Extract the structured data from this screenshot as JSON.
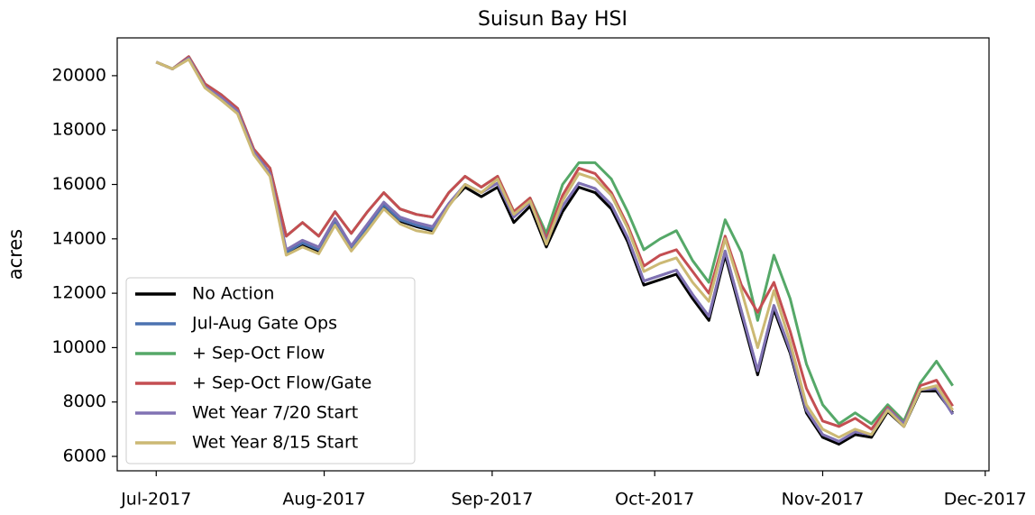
{
  "chart_data": {
    "type": "line",
    "title": "Suisun Bay HSI",
    "y_label": "acres",
    "x": [
      0,
      3,
      6,
      9,
      12,
      15,
      18,
      21,
      24,
      27,
      30,
      33,
      36,
      39,
      42,
      45,
      48,
      51,
      54,
      57,
      60,
      63,
      66,
      69,
      72,
      75,
      78,
      81,
      84,
      87,
      90,
      93,
      96,
      99,
      102,
      105,
      108,
      111,
      114,
      117,
      120,
      123,
      126,
      129,
      132,
      135,
      138,
      141,
      144,
      147
    ],
    "xlim": [
      -7.2,
      153.7
    ],
    "xticks": [
      {
        "value": 0,
        "label": "Jul-2017"
      },
      {
        "value": 31,
        "label": "Aug-2017"
      },
      {
        "value": 62,
        "label": "Sep-2017"
      },
      {
        "value": 92,
        "label": "Oct-2017"
      },
      {
        "value": 123,
        "label": "Nov-2017"
      },
      {
        "value": 153,
        "label": "Dec-2017"
      }
    ],
    "ylim": [
      5470,
      21390
    ],
    "yticks": [
      6000,
      8000,
      10000,
      12000,
      14000,
      16000,
      18000,
      20000
    ],
    "legend": "lower left",
    "series": [
      {
        "name": "No Action",
        "color": "#000000",
        "values": [
          20500,
          20250,
          20650,
          19600,
          19200,
          18700,
          17200,
          16400,
          13450,
          13800,
          13550,
          14600,
          13600,
          14400,
          15200,
          14650,
          14450,
          14300,
          15250,
          15900,
          15550,
          15900,
          14600,
          15200,
          13700,
          15000,
          15900,
          15700,
          15100,
          13900,
          12300,
          12500,
          12700,
          11800,
          11000,
          13400,
          11200,
          9000,
          11400,
          9800,
          7600,
          6700,
          6450,
          6800,
          6700,
          7650,
          7100,
          8400,
          8400,
          7600
        ]
      },
      {
        "name": "Jul-Aug Gate Ops",
        "color": "#4c72b0",
        "values": [
          20500,
          20250,
          20650,
          19600,
          19200,
          18700,
          17200,
          16400,
          13500,
          13850,
          13600,
          14650,
          13650,
          14450,
          15250,
          14700,
          14500,
          14350,
          15250,
          16000,
          15700,
          16050,
          14800,
          15350,
          13900,
          15200,
          16050,
          15850,
          15250,
          14050,
          12450,
          12650,
          12850,
          11950,
          11150,
          13550,
          11350,
          9150,
          11550,
          9900,
          7700,
          6800,
          6550,
          6900,
          6800,
          7750,
          7200,
          8450,
          8500,
          7550
        ]
      },
      {
        "name": "+ Sep-Oct Flow",
        "color": "#55a868",
        "values": [
          20500,
          20250,
          20700,
          19700,
          19300,
          18800,
          17300,
          16600,
          14100,
          14600,
          14100,
          15000,
          14200,
          15000,
          15700,
          15100,
          14900,
          14800,
          15700,
          16300,
          15900,
          16300,
          15000,
          15500,
          14200,
          16000,
          16800,
          16800,
          16200,
          15000,
          13600,
          14000,
          14300,
          13200,
          12400,
          14700,
          13500,
          11000,
          13400,
          11800,
          9400,
          7900,
          7200,
          7600,
          7200,
          7900,
          7300,
          8700,
          9500,
          8600
        ]
      },
      {
        "name": "+ Sep-Oct Flow/Gate",
        "color": "#c44e52",
        "values": [
          20500,
          20250,
          20700,
          19700,
          19300,
          18800,
          17300,
          16600,
          14100,
          14600,
          14100,
          15000,
          14200,
          15000,
          15700,
          15100,
          14900,
          14800,
          15700,
          16300,
          15900,
          16300,
          15000,
          15500,
          14000,
          15600,
          16600,
          16400,
          15700,
          14500,
          13000,
          13400,
          13600,
          12800,
          12000,
          14100,
          12300,
          11300,
          12400,
          10600,
          8500,
          7300,
          7100,
          7400,
          7000,
          7800,
          7200,
          8600,
          8800,
          7850
        ]
      },
      {
        "name": "Wet Year 7/20 Start",
        "color": "#8172b3",
        "values": [
          20500,
          20250,
          20650,
          19600,
          19200,
          18700,
          17200,
          16400,
          13600,
          13950,
          13700,
          14750,
          13750,
          14550,
          15350,
          14800,
          14600,
          14450,
          15300,
          16000,
          15700,
          16050,
          14800,
          15350,
          13900,
          15200,
          16050,
          15850,
          15250,
          14050,
          12450,
          12650,
          12850,
          11950,
          11150,
          13550,
          11350,
          9150,
          11550,
          9900,
          7700,
          6800,
          6550,
          6900,
          6800,
          7750,
          7200,
          8450,
          8500,
          7550
        ]
      },
      {
        "name": "Wet Year 8/15 Start",
        "color": "#ccb974",
        "values": [
          20500,
          20250,
          20600,
          19550,
          19100,
          18600,
          17100,
          16300,
          13400,
          13700,
          13450,
          14500,
          13550,
          14300,
          15100,
          14550,
          14300,
          14200,
          15200,
          16000,
          15700,
          16200,
          14900,
          15400,
          13800,
          15400,
          16400,
          16200,
          15600,
          14400,
          12800,
          13100,
          13300,
          12400,
          11700,
          14000,
          12100,
          10000,
          12100,
          10200,
          7900,
          7000,
          6700,
          7000,
          6800,
          7700,
          7100,
          8450,
          8600,
          7700
        ]
      }
    ]
  }
}
